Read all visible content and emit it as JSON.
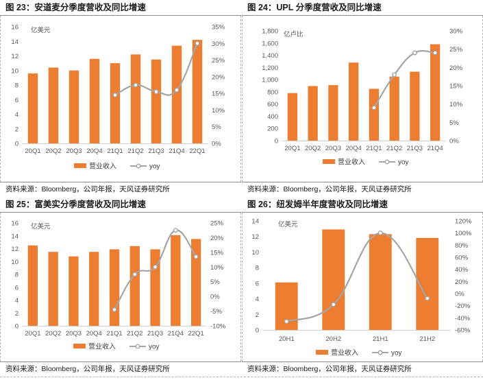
{
  "colors": {
    "bar": "#ED7D31",
    "line": "#A5A5A5",
    "axis_text": "#595959"
  },
  "panels": [
    {
      "title": "图 23：安道麦分季度营收及同比增速",
      "source": "资料来源：Bloomberg，公司年报，天风证券研究所",
      "chart_data": {
        "type": "bar+line",
        "unit_label": "亿美元",
        "categories": [
          "20Q1",
          "20Q2",
          "20Q3",
          "20Q4",
          "21Q1",
          "21Q2",
          "21Q3",
          "21Q4",
          "22Q1"
        ],
        "series": [
          {
            "name": "营业收入",
            "type": "bar",
            "axis": "left",
            "values": [
              9.6,
              10.4,
              10.0,
              11.6,
              11.0,
              12.2,
              11.5,
              13.4,
              14.2
            ]
          },
          {
            "name": "yoy",
            "type": "line",
            "axis": "right",
            "values": [
              null,
              null,
              null,
              null,
              0.145,
              0.175,
              0.155,
              0.16,
              0.3
            ]
          }
        ],
        "y_left": {
          "min": 0,
          "max": 16,
          "step": 2
        },
        "y_right": {
          "min": 0,
          "max": 0.35,
          "step": 0.05
        },
        "legend": "bottom"
      }
    },
    {
      "title": "图 24：UPL 分季度营收及同比增速",
      "source": "资料来源：Bloomberg，公司年报，天风证券研究所",
      "chart_data": {
        "type": "bar+line",
        "unit_label": "亿卢比",
        "categories": [
          "20Q1",
          "20Q2",
          "20Q3",
          "20Q4",
          "21Q1",
          "21Q2",
          "21Q3",
          "21Q4"
        ],
        "series": [
          {
            "name": "营业收入",
            "type": "bar",
            "axis": "left",
            "values": [
              780,
              895,
              910,
              1280,
              850,
              1050,
              1130,
              1580
            ]
          },
          {
            "name": "yoy",
            "type": "line",
            "axis": "right",
            "values": [
              null,
              null,
              null,
              null,
              0.09,
              0.18,
              0.24,
              0.24
            ]
          }
        ],
        "y_left": {
          "min": 0,
          "max": 1800,
          "step": 200
        },
        "y_right": {
          "min": 0,
          "max": 0.3,
          "step": 0.05
        },
        "legend": "bottom"
      }
    },
    {
      "title": "图 25：富美实分季度营收及同比增速",
      "source": "资料来源：Bloomberg，公司年报，天风证券研究所",
      "chart_data": {
        "type": "bar+line",
        "unit_label": "亿美元",
        "categories": [
          "20Q1",
          "20Q2",
          "20Q3",
          "20Q4",
          "21Q1",
          "21Q2",
          "21Q3",
          "21Q4",
          "22Q1"
        ],
        "series": [
          {
            "name": "营业收入",
            "type": "bar",
            "axis": "left",
            "values": [
              12.5,
              11.5,
              10.8,
              11.5,
              11.9,
              12.4,
              11.9,
              14.1,
              13.5
            ]
          },
          {
            "name": "yoy",
            "type": "line",
            "axis": "right",
            "values": [
              null,
              null,
              null,
              null,
              -0.045,
              0.075,
              0.1,
              0.225,
              0.135
            ]
          }
        ],
        "y_left": {
          "min": 0,
          "max": 16,
          "step": 2
        },
        "y_right": {
          "min": -0.1,
          "max": 0.25,
          "step": 0.05
        },
        "legend": "bottom"
      }
    },
    {
      "title": "图 26：纽发姆半年度营收及同比增速",
      "source": "资料来源：Bloomberg，公司年报，天风证券研究所",
      "chart_data": {
        "type": "bar+line",
        "unit_label": "亿美元",
        "categories": [
          "20H1",
          "20H2",
          "21H1",
          "21H2"
        ],
        "series": [
          {
            "name": "营业收入",
            "type": "bar",
            "axis": "left",
            "values": [
              6.1,
              12.9,
              12.3,
              11.8
            ]
          },
          {
            "name": "yoy",
            "type": "line",
            "axis": "right",
            "values": [
              -0.46,
              -0.18,
              1.0,
              -0.08
            ]
          }
        ],
        "y_left": {
          "min": 0,
          "max": 14,
          "step": 2
        },
        "y_right": {
          "min": -0.6,
          "max": 1.2,
          "step": 0.2
        },
        "legend": "bottom"
      }
    }
  ]
}
